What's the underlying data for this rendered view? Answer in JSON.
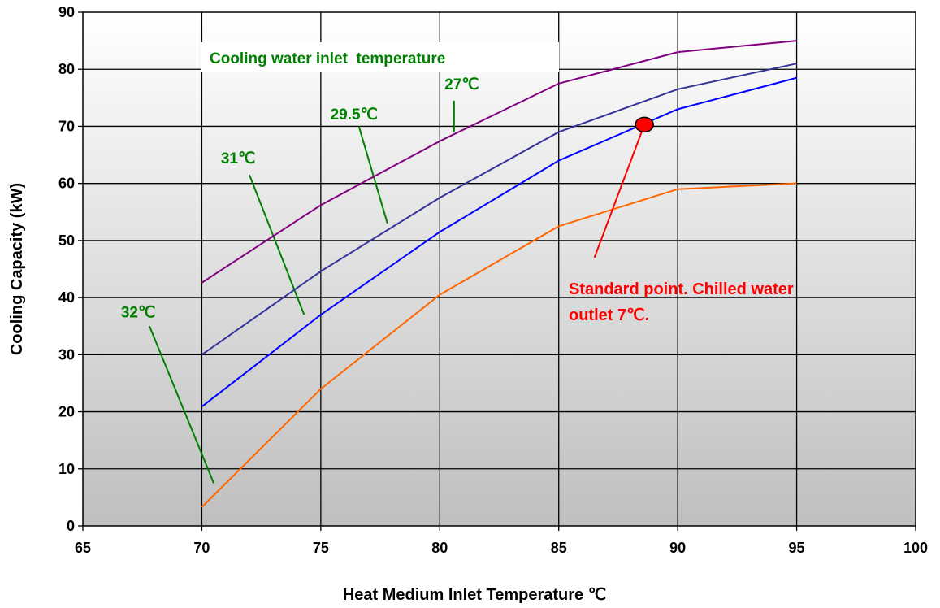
{
  "chart_data": {
    "type": "line",
    "xlabel": "Heat Medium Inlet Temperature ℃",
    "ylabel": "Cooling Capacity (kW)",
    "xlim": [
      65,
      100
    ],
    "ylim": [
      0,
      90
    ],
    "x_ticks": [
      "65",
      "70",
      "75",
      "80",
      "85",
      "90",
      "95",
      "100"
    ],
    "y_ticks": [
      "0",
      "10",
      "20",
      "30",
      "40",
      "50",
      "60",
      "70",
      "80",
      "90"
    ],
    "grid": true,
    "legend_title": "Cooling water inlet  temperature",
    "series": [
      {
        "name": "27℃",
        "color": "#800080",
        "x": [
          70,
          75,
          80,
          85,
          90,
          95
        ],
        "y": [
          42.6,
          56.2,
          67.4,
          77.5,
          83.0,
          85.0
        ]
      },
      {
        "name": "29.5℃",
        "color": "#333399",
        "x": [
          70,
          75,
          80,
          85,
          90,
          95
        ],
        "y": [
          30.0,
          44.6,
          57.5,
          69.0,
          76.5,
          81.0
        ]
      },
      {
        "name": "31℃",
        "color": "#0000ff",
        "x": [
          70,
          75,
          80,
          85,
          90,
          95
        ],
        "y": [
          20.9,
          37.0,
          51.5,
          64.0,
          73.0,
          78.5
        ]
      },
      {
        "name": "32℃",
        "color": "#ff6600",
        "x": [
          70,
          75,
          80,
          85,
          90,
          95
        ],
        "y": [
          3.3,
          24.0,
          40.5,
          52.5,
          59.0,
          60.0
        ]
      }
    ],
    "annotations": {
      "standard_point_lines": [
        "Standard point. Chilled water",
        "outlet 7℃."
      ],
      "standard_point": {
        "x": 88.6,
        "y": 70.3,
        "color": "#ff0000"
      },
      "standard_point_leader": {
        "from": [
          86.5,
          47.0
        ],
        "to": [
          88.6,
          70.3
        ]
      },
      "series_leaders": [
        {
          "from": [
            80.6,
            69.0
          ],
          "to": [
            80.6,
            74.5
          ]
        },
        {
          "from": [
            77.8,
            53.0
          ],
          "to": [
            76.6,
            70.0
          ]
        },
        {
          "from": [
            74.3,
            37.0
          ],
          "to": [
            72.0,
            61.5
          ]
        },
        {
          "from": [
            70.5,
            7.5
          ],
          "to": [
            67.8,
            35.0
          ]
        }
      ],
      "series_label_positions": [
        {
          "x": 80.2,
          "y": 76.5
        },
        {
          "x": 75.4,
          "y": 71.2
        },
        {
          "x": 70.8,
          "y": 63.5
        },
        {
          "x": 66.6,
          "y": 36.5
        }
      ]
    }
  }
}
